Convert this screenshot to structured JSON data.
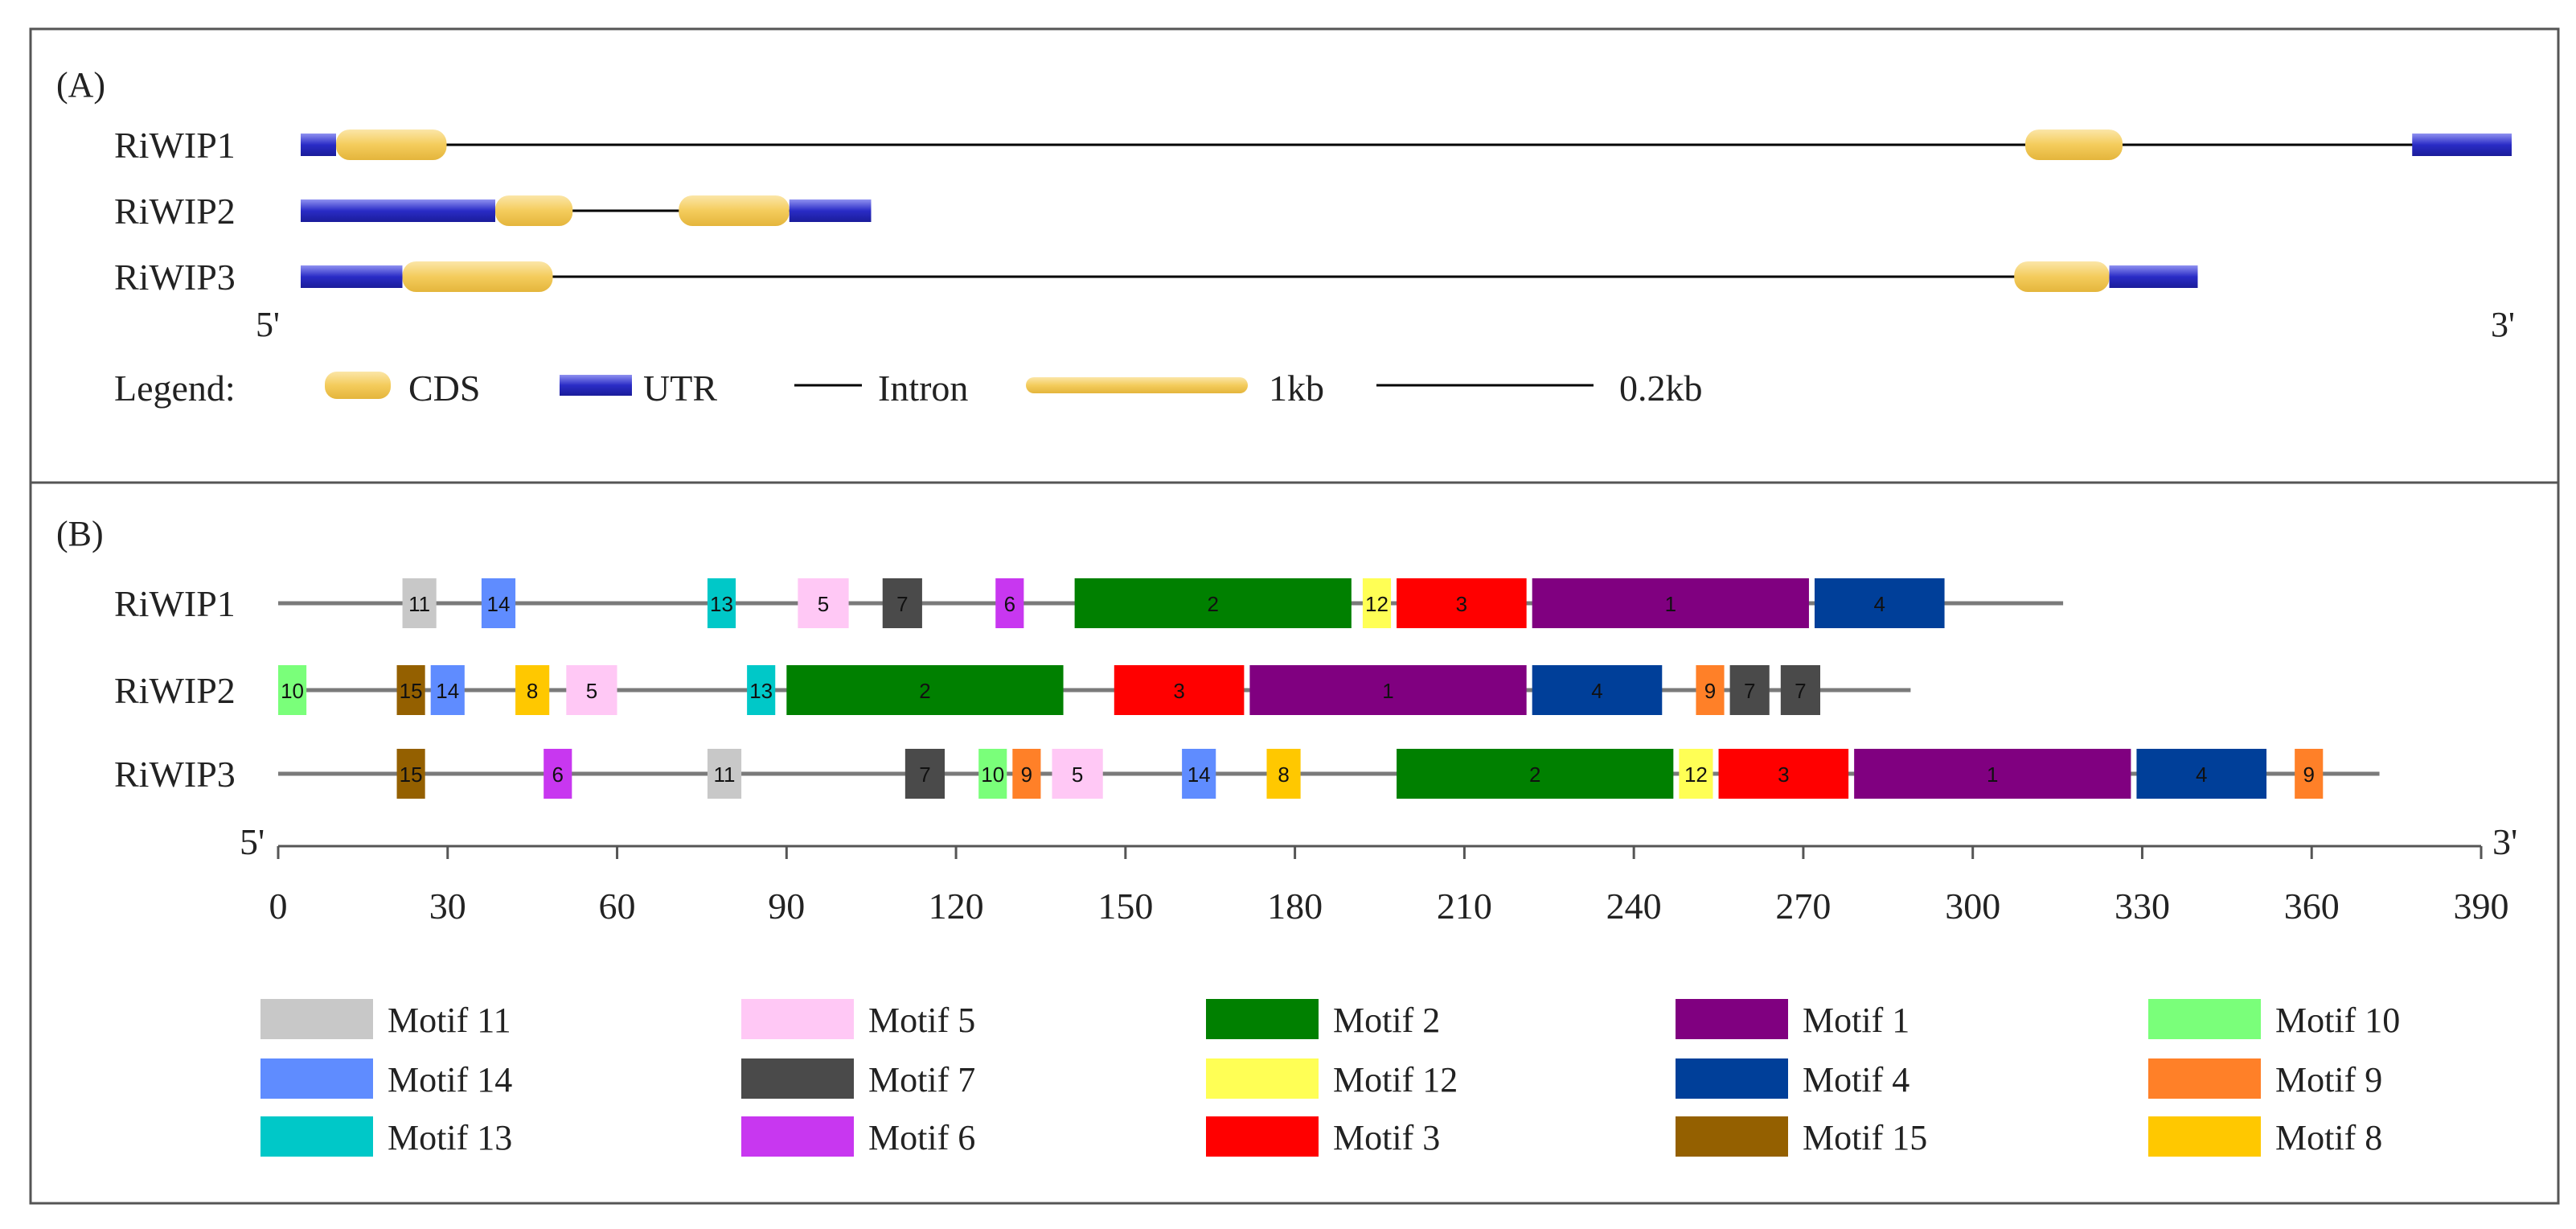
{
  "colors": {
    "cds": "#f7d066",
    "utr": "#2d2fc9",
    "intron": "#000000",
    "protein_line": "#7a7a7a",
    "frame": "#555555"
  },
  "panel_a": {
    "label": "(A)",
    "five_prime": "5'",
    "three_prime": "3'",
    "genes": [
      {
        "name": "RiWIP1",
        "span_kb": [
          0,
          10.0
        ],
        "features": [
          {
            "type": "utr",
            "start": 0.0,
            "end": 0.16
          },
          {
            "type": "cds",
            "start": 0.16,
            "end": 0.66
          },
          {
            "type": "cds",
            "start": 7.8,
            "end": 8.24
          },
          {
            "type": "utr",
            "start": 9.55,
            "end": 10.0
          }
        ]
      },
      {
        "name": "RiWIP2",
        "span_kb": [
          0,
          2.58
        ],
        "features": [
          {
            "type": "utr",
            "start": 0.0,
            "end": 0.88
          },
          {
            "type": "cds",
            "start": 0.88,
            "end": 1.23
          },
          {
            "type": "cds",
            "start": 1.71,
            "end": 2.21
          },
          {
            "type": "utr",
            "start": 2.21,
            "end": 2.58
          }
        ]
      },
      {
        "name": "RiWIP3",
        "span_kb": [
          0,
          8.58
        ],
        "features": [
          {
            "type": "utr",
            "start": 0.0,
            "end": 0.46
          },
          {
            "type": "cds",
            "start": 0.46,
            "end": 1.14
          },
          {
            "type": "cds",
            "start": 7.75,
            "end": 8.18
          },
          {
            "type": "utr",
            "start": 8.18,
            "end": 8.58
          }
        ]
      }
    ],
    "legend": {
      "title": "Legend:",
      "cds": "CDS",
      "utr": "UTR",
      "intron": "Intron",
      "scale_cds": "1kb",
      "scale_intron": "0.2kb"
    }
  },
  "panel_b": {
    "label": "(B)",
    "five_prime": "5'",
    "three_prime": "3'",
    "axis": {
      "min": 0,
      "max": 390,
      "ticks": [
        "0",
        "30",
        "60",
        "90",
        "120",
        "150",
        "180",
        "210",
        "240",
        "270",
        "300",
        "330",
        "360",
        "390"
      ]
    },
    "proteins": [
      {
        "name": "RiWIP1",
        "length": 316,
        "motifs": [
          {
            "id": "11",
            "start": 22,
            "end": 28
          },
          {
            "id": "14",
            "start": 36,
            "end": 42
          },
          {
            "id": "13",
            "start": 76,
            "end": 81
          },
          {
            "id": "5",
            "start": 92,
            "end": 101
          },
          {
            "id": "7",
            "start": 107,
            "end": 114
          },
          {
            "id": "6",
            "start": 127,
            "end": 132
          },
          {
            "id": "2",
            "start": 141,
            "end": 190
          },
          {
            "id": "12",
            "start": 192,
            "end": 197
          },
          {
            "id": "3",
            "start": 198,
            "end": 221
          },
          {
            "id": "1",
            "start": 222,
            "end": 271
          },
          {
            "id": "4",
            "start": 272,
            "end": 295
          }
        ]
      },
      {
        "name": "RiWIP2",
        "length": 289,
        "motifs": [
          {
            "id": "10",
            "start": 0,
            "end": 5
          },
          {
            "id": "15",
            "start": 21,
            "end": 26
          },
          {
            "id": "14",
            "start": 27,
            "end": 33
          },
          {
            "id": "8",
            "start": 42,
            "end": 48
          },
          {
            "id": "5",
            "start": 51,
            "end": 60
          },
          {
            "id": "13",
            "start": 83,
            "end": 88
          },
          {
            "id": "2",
            "start": 90,
            "end": 139
          },
          {
            "id": "3",
            "start": 148,
            "end": 171
          },
          {
            "id": "1",
            "start": 172,
            "end": 221
          },
          {
            "id": "4",
            "start": 222,
            "end": 245
          },
          {
            "id": "9",
            "start": 251,
            "end": 256
          },
          {
            "id": "7",
            "start": 257,
            "end": 264
          },
          {
            "id": "7",
            "start": 266,
            "end": 273
          }
        ]
      },
      {
        "name": "RiWIP3",
        "length": 372,
        "motifs": [
          {
            "id": "15",
            "start": 21,
            "end": 26
          },
          {
            "id": "6",
            "start": 47,
            "end": 52
          },
          {
            "id": "11",
            "start": 76,
            "end": 82
          },
          {
            "id": "7",
            "start": 111,
            "end": 118
          },
          {
            "id": "10",
            "start": 124,
            "end": 129
          },
          {
            "id": "9",
            "start": 130,
            "end": 135
          },
          {
            "id": "5",
            "start": 137,
            "end": 146
          },
          {
            "id": "14",
            "start": 160,
            "end": 166
          },
          {
            "id": "8",
            "start": 175,
            "end": 181
          },
          {
            "id": "2",
            "start": 198,
            "end": 247
          },
          {
            "id": "12",
            "start": 248,
            "end": 254
          },
          {
            "id": "3",
            "start": 255,
            "end": 278
          },
          {
            "id": "1",
            "start": 279,
            "end": 328
          },
          {
            "id": "4",
            "start": 329,
            "end": 352
          },
          {
            "id": "9",
            "start": 357,
            "end": 362
          }
        ]
      }
    ],
    "motif_colors": {
      "1": "#800080",
      "2": "#008000",
      "3": "#ff0000",
      "4": "#003f99",
      "5": "#ffc8f5",
      "6": "#c837f0",
      "7": "#4a4a4a",
      "8": "#ffc800",
      "9": "#ff8028",
      "10": "#7aff7a",
      "11": "#c8c8c8",
      "12": "#ffff55",
      "13": "#00c8c8",
      "14": "#5f8cff",
      "15": "#946000"
    },
    "legend_columns": [
      [
        {
          "id": "11",
          "label": "Motif 11"
        },
        {
          "id": "14",
          "label": "Motif 14"
        },
        {
          "id": "13",
          "label": "Motif 13"
        }
      ],
      [
        {
          "id": "5",
          "label": "Motif 5"
        },
        {
          "id": "7",
          "label": "Motif 7"
        },
        {
          "id": "6",
          "label": "Motif 6"
        }
      ],
      [
        {
          "id": "2",
          "label": "Motif 2"
        },
        {
          "id": "12",
          "label": "Motif 12"
        },
        {
          "id": "3",
          "label": "Motif 3"
        }
      ],
      [
        {
          "id": "1",
          "label": "Motif 1"
        },
        {
          "id": "4",
          "label": "Motif 4"
        },
        {
          "id": "15",
          "label": "Motif 15"
        }
      ],
      [
        {
          "id": "10",
          "label": "Motif 10"
        },
        {
          "id": "9",
          "label": "Motif 9"
        },
        {
          "id": "8",
          "label": "Motif 8"
        }
      ]
    ]
  }
}
